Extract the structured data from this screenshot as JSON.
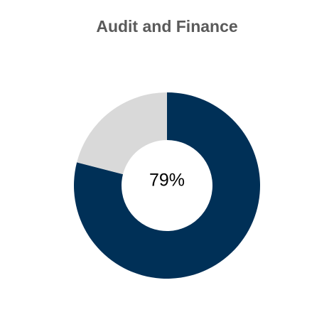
{
  "chart_data": {
    "type": "pie",
    "title": "Audit and Finance",
    "center_label": "79%",
    "slices": [
      {
        "value": 79,
        "color": "#003057"
      },
      {
        "value": 21,
        "color": "#d9d9d9"
      }
    ],
    "donut": true
  }
}
